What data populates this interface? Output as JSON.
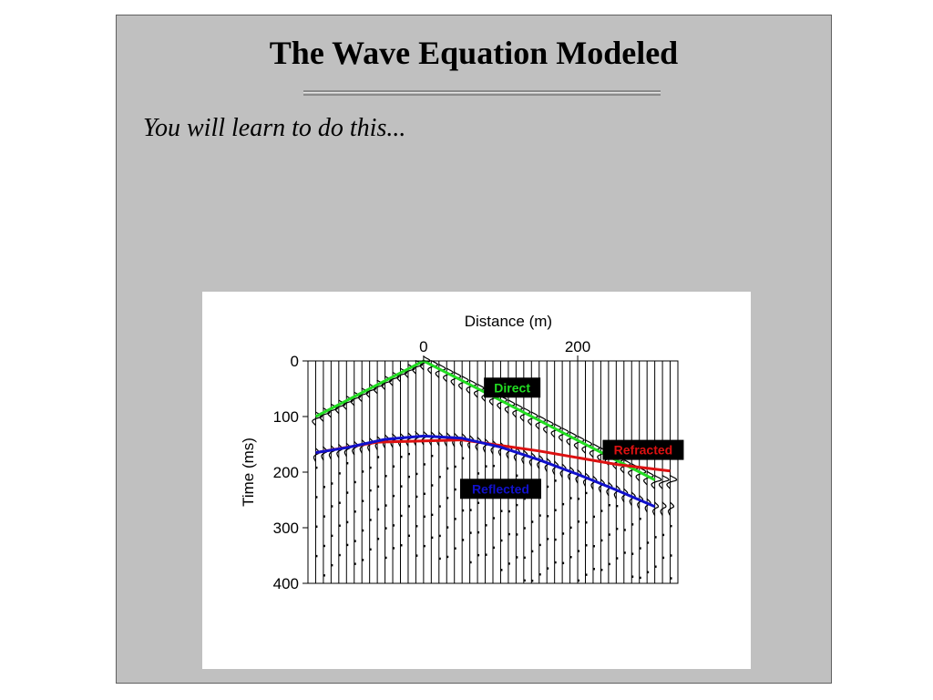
{
  "slide": {
    "title": "The Wave Equation Modeled",
    "subtitle": "You will learn to do this..."
  },
  "colors": {
    "slide_background": "#c0c0c0",
    "direct": "#22dd22",
    "refracted": "#dd1111",
    "reflected": "#1111cc",
    "label_box": "#000000"
  },
  "chart_data": {
    "type": "seismogram",
    "title": "",
    "xlabel": "Distance (m)",
    "ylabel": "Time (ms)",
    "xlim": [
      -150,
      330
    ],
    "ylim": [
      0,
      400
    ],
    "x_axis_position": "top",
    "x_ticks": [
      0,
      200
    ],
    "y_ticks": [
      0,
      100,
      200,
      300,
      400
    ],
    "trace_spacing_m": 10,
    "series": [
      {
        "name": "Direct",
        "color": "#22dd22",
        "x": [
          -140,
          -70,
          0,
          100,
          200,
          300
        ],
        "y": [
          100,
          50,
          0,
          71,
          143,
          214
        ]
      },
      {
        "name": "Refracted",
        "color": "#dd1111",
        "x": [
          -140,
          -60,
          50,
          150,
          250,
          320
        ],
        "y": [
          165,
          146,
          142,
          162,
          186,
          198
        ]
      },
      {
        "name": "Reflected",
        "color": "#1111cc",
        "x": [
          -140,
          -100,
          -50,
          0,
          50,
          100,
          150,
          200,
          250,
          300
        ],
        "y": [
          165,
          156,
          141,
          135,
          139,
          155,
          178,
          204,
          232,
          262
        ]
      }
    ],
    "annotations": [
      {
        "text": "Direct",
        "color": "#22dd22",
        "at_x": 115,
        "at_y": 48
      },
      {
        "text": "Refracted",
        "color": "#dd1111",
        "at_x": 285,
        "at_y": 160
      },
      {
        "text": "Reflected",
        "color": "#1111cc",
        "at_x": 100,
        "at_y": 230
      }
    ]
  }
}
